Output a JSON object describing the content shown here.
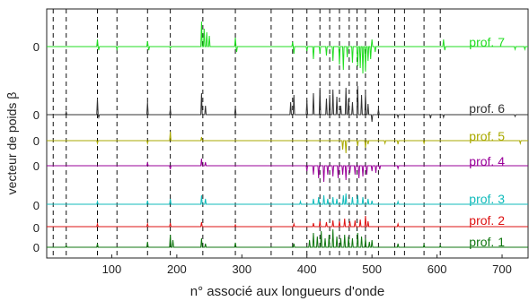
{
  "chart_data": {
    "type": "line",
    "xlabel": "n° associé aux longueurs d'onde",
    "ylabel": "vecteur de poids β",
    "xlim": [
      0,
      740
    ],
    "x_ticks": [
      "100",
      "200",
      "300",
      "400",
      "500",
      "600",
      "700"
    ],
    "x_tick_values": [
      100,
      200,
      300,
      400,
      500,
      600,
      700
    ],
    "grid": false,
    "legend": "inline labels at right end of each trace",
    "vertical_dashed_lines": [
      10,
      30,
      78,
      108,
      155,
      190,
      240,
      290,
      345,
      378,
      400,
      420,
      435,
      450,
      465,
      477,
      490,
      510,
      535,
      550,
      580,
      605
    ],
    "series": [
      {
        "name": "prof. 7",
        "color": "#22dd22",
        "zero_label": "0",
        "spikes": [
          [
            78,
            8
          ],
          [
            80,
            -4
          ],
          [
            108,
            -3
          ],
          [
            155,
            6
          ],
          [
            157,
            -4
          ],
          [
            190,
            -2
          ],
          [
            238,
            28
          ],
          [
            242,
            20
          ],
          [
            246,
            16
          ],
          [
            250,
            12
          ],
          [
            290,
            10
          ],
          [
            292,
            -6
          ],
          [
            378,
            5
          ],
          [
            380,
            -8
          ],
          [
            400,
            -5
          ],
          [
            410,
            -14
          ],
          [
            420,
            -8
          ],
          [
            430,
            -10
          ],
          [
            440,
            -16
          ],
          [
            450,
            -20
          ],
          [
            456,
            -26
          ],
          [
            462,
            -12
          ],
          [
            470,
            -18
          ],
          [
            478,
            -22
          ],
          [
            482,
            -24
          ],
          [
            486,
            -30
          ],
          [
            490,
            -28
          ],
          [
            494,
            -16
          ],
          [
            498,
            -14
          ],
          [
            500,
            8
          ],
          [
            505,
            -6
          ],
          [
            610,
            8
          ],
          [
            612,
            -4
          ],
          [
            720,
            -3
          ],
          [
            735,
            -3
          ]
        ]
      },
      {
        "name": "prof. 6",
        "color": "#333333",
        "zero_label": "0",
        "spikes": [
          [
            30,
            3
          ],
          [
            78,
            18
          ],
          [
            80,
            -3
          ],
          [
            155,
            14
          ],
          [
            190,
            6
          ],
          [
            238,
            24
          ],
          [
            244,
            10
          ],
          [
            290,
            8
          ],
          [
            375,
            14
          ],
          [
            380,
            22
          ],
          [
            400,
            16
          ],
          [
            410,
            24
          ],
          [
            420,
            30
          ],
          [
            430,
            18
          ],
          [
            435,
            22
          ],
          [
            440,
            28
          ],
          [
            446,
            20
          ],
          [
            452,
            10
          ],
          [
            460,
            30
          ],
          [
            464,
            18
          ],
          [
            470,
            14
          ],
          [
            478,
            32
          ],
          [
            484,
            22
          ],
          [
            490,
            24
          ],
          [
            494,
            12
          ],
          [
            500,
            -8
          ],
          [
            510,
            6
          ],
          [
            540,
            -3
          ],
          [
            590,
            -4
          ],
          [
            610,
            -3
          ],
          [
            720,
            -2
          ]
        ]
      },
      {
        "name": "prof. 5",
        "color": "#aaaa00",
        "zero_label": "0",
        "spikes": [
          [
            78,
            -3
          ],
          [
            155,
            -3
          ],
          [
            190,
            10
          ],
          [
            238,
            4
          ],
          [
            455,
            -10
          ],
          [
            460,
            -14
          ],
          [
            478,
            -6
          ],
          [
            490,
            -8
          ],
          [
            494,
            -4
          ],
          [
            520,
            -3
          ],
          [
            540,
            -4
          ],
          [
            580,
            -3
          ],
          [
            728,
            -3
          ]
        ]
      },
      {
        "name": "prof. 4",
        "color": "#990099",
        "zero_label": "0",
        "spikes": [
          [
            155,
            3
          ],
          [
            190,
            -4
          ],
          [
            238,
            8
          ],
          [
            244,
            4
          ],
          [
            400,
            -6
          ],
          [
            410,
            -10
          ],
          [
            418,
            -14
          ],
          [
            426,
            -18
          ],
          [
            432,
            -10
          ],
          [
            440,
            -12
          ],
          [
            448,
            -14
          ],
          [
            455,
            -10
          ],
          [
            460,
            -16
          ],
          [
            466,
            -8
          ],
          [
            474,
            -10
          ],
          [
            480,
            -14
          ],
          [
            486,
            -12
          ],
          [
            492,
            -10
          ],
          [
            500,
            -6
          ],
          [
            506,
            -8
          ],
          [
            512,
            -4
          ],
          [
            540,
            -3
          ]
        ]
      },
      {
        "name": "prof. 3",
        "color": "#11bbbb",
        "zero_label": "0",
        "spikes": [
          [
            78,
            3
          ],
          [
            155,
            4
          ],
          [
            190,
            6
          ],
          [
            238,
            10
          ],
          [
            244,
            6
          ],
          [
            390,
            3
          ],
          [
            410,
            6
          ],
          [
            418,
            8
          ],
          [
            426,
            10
          ],
          [
            432,
            6
          ],
          [
            440,
            8
          ],
          [
            446,
            6
          ],
          [
            456,
            10
          ],
          [
            460,
            12
          ],
          [
            470,
            8
          ],
          [
            478,
            10
          ],
          [
            486,
            8
          ],
          [
            494,
            6
          ],
          [
            500,
            4
          ],
          [
            540,
            3
          ]
        ]
      },
      {
        "name": "prof. 2",
        "color": "#dd1111",
        "zero_label": "0",
        "spikes": [
          [
            78,
            3
          ],
          [
            155,
            3
          ],
          [
            190,
            4
          ],
          [
            238,
            5
          ],
          [
            290,
            2
          ],
          [
            380,
            3
          ],
          [
            410,
            4
          ],
          [
            420,
            6
          ],
          [
            430,
            5
          ],
          [
            440,
            7
          ],
          [
            450,
            6
          ],
          [
            458,
            9
          ],
          [
            466,
            6
          ],
          [
            474,
            7
          ],
          [
            482,
            8
          ],
          [
            490,
            12
          ],
          [
            494,
            6
          ],
          [
            540,
            3
          ]
        ]
      },
      {
        "name": "prof. 1",
        "color": "#117711",
        "zero_label": "0",
        "spikes": [
          [
            30,
            2
          ],
          [
            78,
            4
          ],
          [
            155,
            6
          ],
          [
            190,
            14
          ],
          [
            194,
            8
          ],
          [
            238,
            10
          ],
          [
            244,
            4
          ],
          [
            290,
            5
          ],
          [
            380,
            4
          ],
          [
            404,
            8
          ],
          [
            410,
            16
          ],
          [
            416,
            12
          ],
          [
            422,
            18
          ],
          [
            428,
            10
          ],
          [
            434,
            14
          ],
          [
            440,
            20
          ],
          [
            446,
            12
          ],
          [
            452,
            10
          ],
          [
            458,
            14
          ],
          [
            464,
            12
          ],
          [
            470,
            10
          ],
          [
            478,
            16
          ],
          [
            484,
            12
          ],
          [
            490,
            10
          ],
          [
            496,
            6
          ],
          [
            500,
            8
          ],
          [
            540,
            4
          ],
          [
            580,
            3
          ],
          [
            605,
            2
          ]
        ]
      }
    ]
  }
}
